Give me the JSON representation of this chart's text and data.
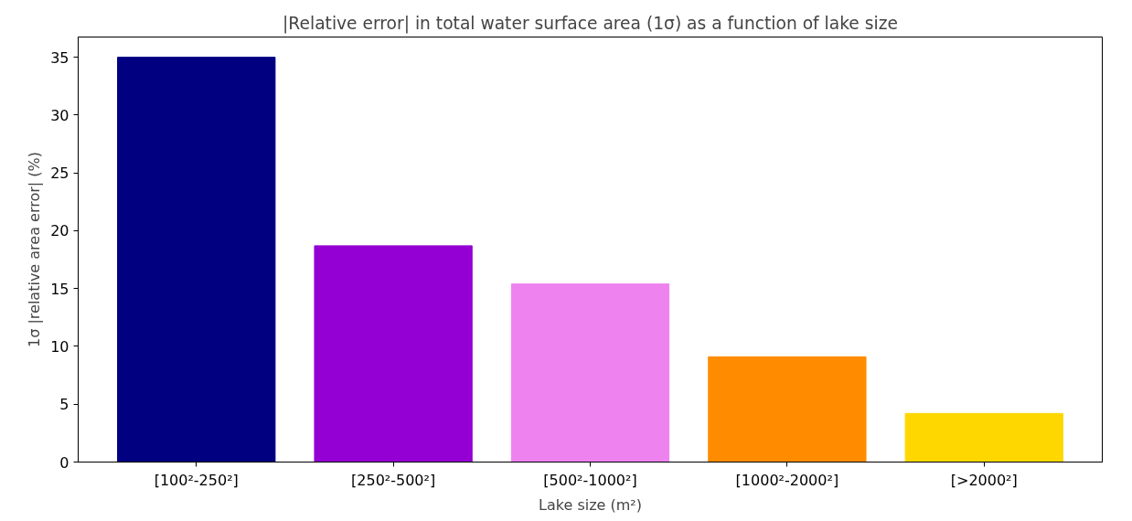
{
  "chart_data": {
    "type": "bar",
    "title": "|Relative error| in total water surface area (1σ) as a function of lake size",
    "xlabel": "Lake size (m²)",
    "ylabel": "1σ |relative area error| (%)",
    "categories": [
      "[100²-250²]",
      "[250²-500²]",
      "[500²-1000²]",
      "[1000²-2000²]",
      "[>2000²]"
    ],
    "values": [
      35.0,
      18.7,
      15.4,
      9.1,
      4.2
    ],
    "colors": [
      "#000080",
      "#9400d3",
      "#ee82ee",
      "#ff8c00",
      "#ffd700"
    ],
    "ylim": [
      0,
      36.75
    ],
    "yticks": [
      0,
      5,
      10,
      15,
      20,
      25,
      30,
      35
    ],
    "grid": false
  }
}
